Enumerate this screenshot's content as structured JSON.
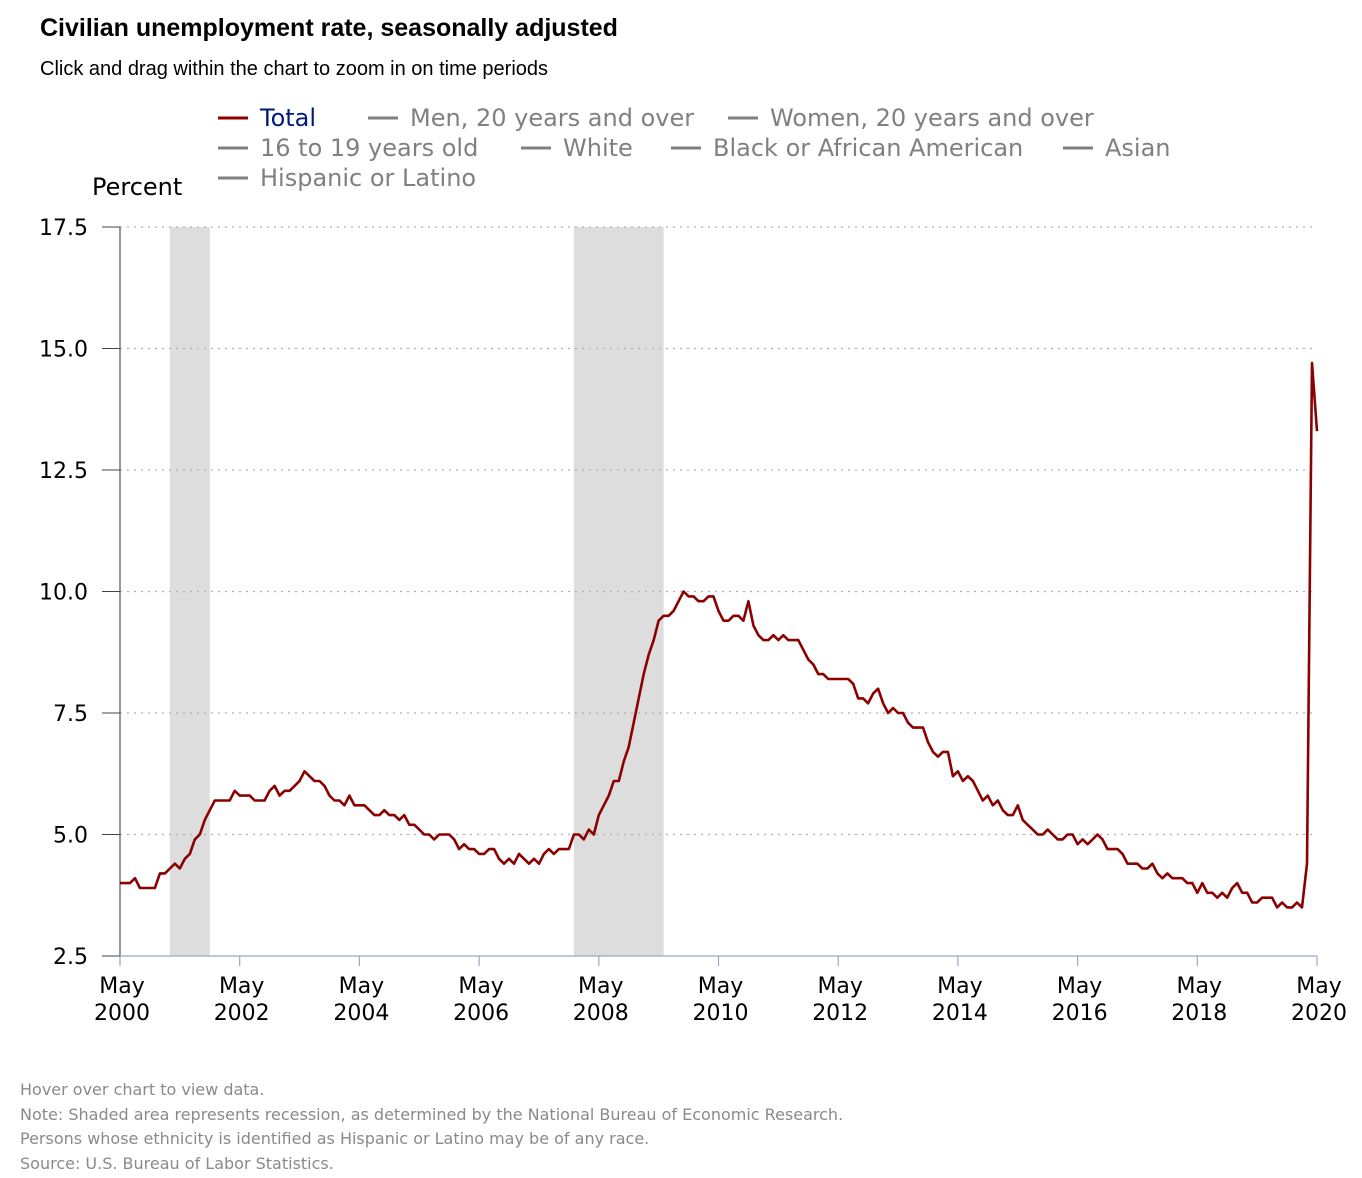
{
  "header": {
    "title": "Civilian unemployment rate, seasonally adjusted",
    "subtitle": "Click and drag within the chart to zoom in on time periods"
  },
  "footnotes": [
    "Hover over chart to view data.",
    "Note: Shaded area represents recession, as determined by the National Bureau of Economic Research.",
    "Persons whose ethnicity is identified as Hispanic or Latino may be of any race.",
    "Source: U.S. Bureau of Labor Statistics."
  ],
  "colors": {
    "total_series": "#8b0000",
    "legend_active_text": "#001a7a",
    "legend_inactive": "#808080",
    "recession_shade": "#dddddd",
    "grid": "#b0b0b0"
  },
  "chart_data": {
    "type": "line",
    "ylabel": "Percent",
    "ylim": [
      2.5,
      17.5
    ],
    "yticks": [
      "2.5",
      "5.0",
      "7.5",
      "10.0",
      "12.5",
      "15.0",
      "17.5"
    ],
    "xlim": [
      "2000-05",
      "2020-05"
    ],
    "xticks": [
      {
        "month": "May",
        "year": "2000"
      },
      {
        "month": "May",
        "year": "2002"
      },
      {
        "month": "May",
        "year": "2004"
      },
      {
        "month": "May",
        "year": "2006"
      },
      {
        "month": "May",
        "year": "2008"
      },
      {
        "month": "May",
        "year": "2010"
      },
      {
        "month": "May",
        "year": "2012"
      },
      {
        "month": "May",
        "year": "2014"
      },
      {
        "month": "May",
        "year": "2016"
      },
      {
        "month": "May",
        "year": "2018"
      },
      {
        "month": "May",
        "year": "2020"
      }
    ],
    "grid": "horizontal dotted",
    "legend_position": "top",
    "legend": [
      {
        "name": "Total",
        "active": true
      },
      {
        "name": "Men, 20 years and over",
        "active": false
      },
      {
        "name": "Women, 20 years and over",
        "active": false
      },
      {
        "name": "16 to 19 years old",
        "active": false
      },
      {
        "name": "White",
        "active": false
      },
      {
        "name": "Black or African American",
        "active": false
      },
      {
        "name": "Asian",
        "active": false
      },
      {
        "name": "Hispanic or Latino",
        "active": false
      }
    ],
    "recessions": [
      {
        "start": "2001-03",
        "end": "2001-11"
      },
      {
        "start": "2007-12",
        "end": "2009-06"
      }
    ],
    "series": [
      {
        "name": "Total",
        "x": [
          "2000-05",
          "2000-06",
          "2000-07",
          "2000-08",
          "2000-09",
          "2000-10",
          "2000-11",
          "2000-12",
          "2001-01",
          "2001-02",
          "2001-03",
          "2001-04",
          "2001-05",
          "2001-06",
          "2001-07",
          "2001-08",
          "2001-09",
          "2001-10",
          "2001-11",
          "2001-12",
          "2002-01",
          "2002-02",
          "2002-03",
          "2002-04",
          "2002-05",
          "2002-06",
          "2002-07",
          "2002-08",
          "2002-09",
          "2002-10",
          "2002-11",
          "2002-12",
          "2003-01",
          "2003-02",
          "2003-03",
          "2003-04",
          "2003-05",
          "2003-06",
          "2003-07",
          "2003-08",
          "2003-09",
          "2003-10",
          "2003-11",
          "2003-12",
          "2004-01",
          "2004-02",
          "2004-03",
          "2004-04",
          "2004-05",
          "2004-06",
          "2004-07",
          "2004-08",
          "2004-09",
          "2004-10",
          "2004-11",
          "2004-12",
          "2005-01",
          "2005-02",
          "2005-03",
          "2005-04",
          "2005-05",
          "2005-06",
          "2005-07",
          "2005-08",
          "2005-09",
          "2005-10",
          "2005-11",
          "2005-12",
          "2006-01",
          "2006-02",
          "2006-03",
          "2006-04",
          "2006-05",
          "2006-06",
          "2006-07",
          "2006-08",
          "2006-09",
          "2006-10",
          "2006-11",
          "2006-12",
          "2007-01",
          "2007-02",
          "2007-03",
          "2007-04",
          "2007-05",
          "2007-06",
          "2007-07",
          "2007-08",
          "2007-09",
          "2007-10",
          "2007-11",
          "2007-12",
          "2008-01",
          "2008-02",
          "2008-03",
          "2008-04",
          "2008-05",
          "2008-06",
          "2008-07",
          "2008-08",
          "2008-09",
          "2008-10",
          "2008-11",
          "2008-12",
          "2009-01",
          "2009-02",
          "2009-03",
          "2009-04",
          "2009-05",
          "2009-06",
          "2009-07",
          "2009-08",
          "2009-09",
          "2009-10",
          "2009-11",
          "2009-12",
          "2010-01",
          "2010-02",
          "2010-03",
          "2010-04",
          "2010-05",
          "2010-06",
          "2010-07",
          "2010-08",
          "2010-09",
          "2010-10",
          "2010-11",
          "2010-12",
          "2011-01",
          "2011-02",
          "2011-03",
          "2011-04",
          "2011-05",
          "2011-06",
          "2011-07",
          "2011-08",
          "2011-09",
          "2011-10",
          "2011-11",
          "2011-12",
          "2012-01",
          "2012-02",
          "2012-03",
          "2012-04",
          "2012-05",
          "2012-06",
          "2012-07",
          "2012-08",
          "2012-09",
          "2012-10",
          "2012-11",
          "2012-12",
          "2013-01",
          "2013-02",
          "2013-03",
          "2013-04",
          "2013-05",
          "2013-06",
          "2013-07",
          "2013-08",
          "2013-09",
          "2013-10",
          "2013-11",
          "2013-12",
          "2014-01",
          "2014-02",
          "2014-03",
          "2014-04",
          "2014-05",
          "2014-06",
          "2014-07",
          "2014-08",
          "2014-09",
          "2014-10",
          "2014-11",
          "2014-12",
          "2015-01",
          "2015-02",
          "2015-03",
          "2015-04",
          "2015-05",
          "2015-06",
          "2015-07",
          "2015-08",
          "2015-09",
          "2015-10",
          "2015-11",
          "2015-12",
          "2016-01",
          "2016-02",
          "2016-03",
          "2016-04",
          "2016-05",
          "2016-06",
          "2016-07",
          "2016-08",
          "2016-09",
          "2016-10",
          "2016-11",
          "2016-12",
          "2017-01",
          "2017-02",
          "2017-03",
          "2017-04",
          "2017-05",
          "2017-06",
          "2017-07",
          "2017-08",
          "2017-09",
          "2017-10",
          "2017-11",
          "2017-12",
          "2018-01",
          "2018-02",
          "2018-03",
          "2018-04",
          "2018-05",
          "2018-06",
          "2018-07",
          "2018-08",
          "2018-09",
          "2018-10",
          "2018-11",
          "2018-12",
          "2019-01",
          "2019-02",
          "2019-03",
          "2019-04",
          "2019-05",
          "2019-06",
          "2019-07",
          "2019-08",
          "2019-09",
          "2019-10",
          "2019-11",
          "2019-12",
          "2020-01",
          "2020-02",
          "2020-03",
          "2020-04",
          "2020-05"
        ],
        "values": [
          4.0,
          4.0,
          4.0,
          4.1,
          3.9,
          3.9,
          3.9,
          3.9,
          4.2,
          4.2,
          4.3,
          4.4,
          4.3,
          4.5,
          4.6,
          4.9,
          5.0,
          5.3,
          5.5,
          5.7,
          5.7,
          5.7,
          5.7,
          5.9,
          5.8,
          5.8,
          5.8,
          5.7,
          5.7,
          5.7,
          5.9,
          6.0,
          5.8,
          5.9,
          5.9,
          6.0,
          6.1,
          6.3,
          6.2,
          6.1,
          6.1,
          6.0,
          5.8,
          5.7,
          5.7,
          5.6,
          5.8,
          5.6,
          5.6,
          5.6,
          5.5,
          5.4,
          5.4,
          5.5,
          5.4,
          5.4,
          5.3,
          5.4,
          5.2,
          5.2,
          5.1,
          5.0,
          5.0,
          4.9,
          5.0,
          5.0,
          5.0,
          4.9,
          4.7,
          4.8,
          4.7,
          4.7,
          4.6,
          4.6,
          4.7,
          4.7,
          4.5,
          4.4,
          4.5,
          4.4,
          4.6,
          4.5,
          4.4,
          4.5,
          4.4,
          4.6,
          4.7,
          4.6,
          4.7,
          4.7,
          4.7,
          5.0,
          5.0,
          4.9,
          5.1,
          5.0,
          5.4,
          5.6,
          5.8,
          6.1,
          6.1,
          6.5,
          6.8,
          7.3,
          7.8,
          8.3,
          8.7,
          9.0,
          9.4,
          9.5,
          9.5,
          9.6,
          9.8,
          10.0,
          9.9,
          9.9,
          9.8,
          9.8,
          9.9,
          9.9,
          9.6,
          9.4,
          9.4,
          9.5,
          9.5,
          9.4,
          9.8,
          9.3,
          9.1,
          9.0,
          9.0,
          9.1,
          9.0,
          9.1,
          9.0,
          9.0,
          9.0,
          8.8,
          8.6,
          8.5,
          8.3,
          8.3,
          8.2,
          8.2,
          8.2,
          8.2,
          8.2,
          8.1,
          7.8,
          7.8,
          7.7,
          7.9,
          8.0,
          7.7,
          7.5,
          7.6,
          7.5,
          7.5,
          7.3,
          7.2,
          7.2,
          7.2,
          6.9,
          6.7,
          6.6,
          6.7,
          6.7,
          6.2,
          6.3,
          6.1,
          6.2,
          6.1,
          5.9,
          5.7,
          5.8,
          5.6,
          5.7,
          5.5,
          5.4,
          5.4,
          5.6,
          5.3,
          5.2,
          5.1,
          5.0,
          5.0,
          5.1,
          5.0,
          4.9,
          4.9,
          5.0,
          5.0,
          4.8,
          4.9,
          4.8,
          4.9,
          5.0,
          4.9,
          4.7,
          4.7,
          4.7,
          4.6,
          4.4,
          4.4,
          4.4,
          4.3,
          4.3,
          4.4,
          4.2,
          4.1,
          4.2,
          4.1,
          4.1,
          4.1,
          4.0,
          4.0,
          3.8,
          4.0,
          3.8,
          3.8,
          3.7,
          3.8,
          3.7,
          3.9,
          4.0,
          3.8,
          3.8,
          3.6,
          3.6,
          3.7,
          3.7,
          3.7,
          3.5,
          3.6,
          3.5,
          3.5,
          3.6,
          3.5,
          4.4,
          14.7,
          13.3
        ]
      }
    ]
  }
}
